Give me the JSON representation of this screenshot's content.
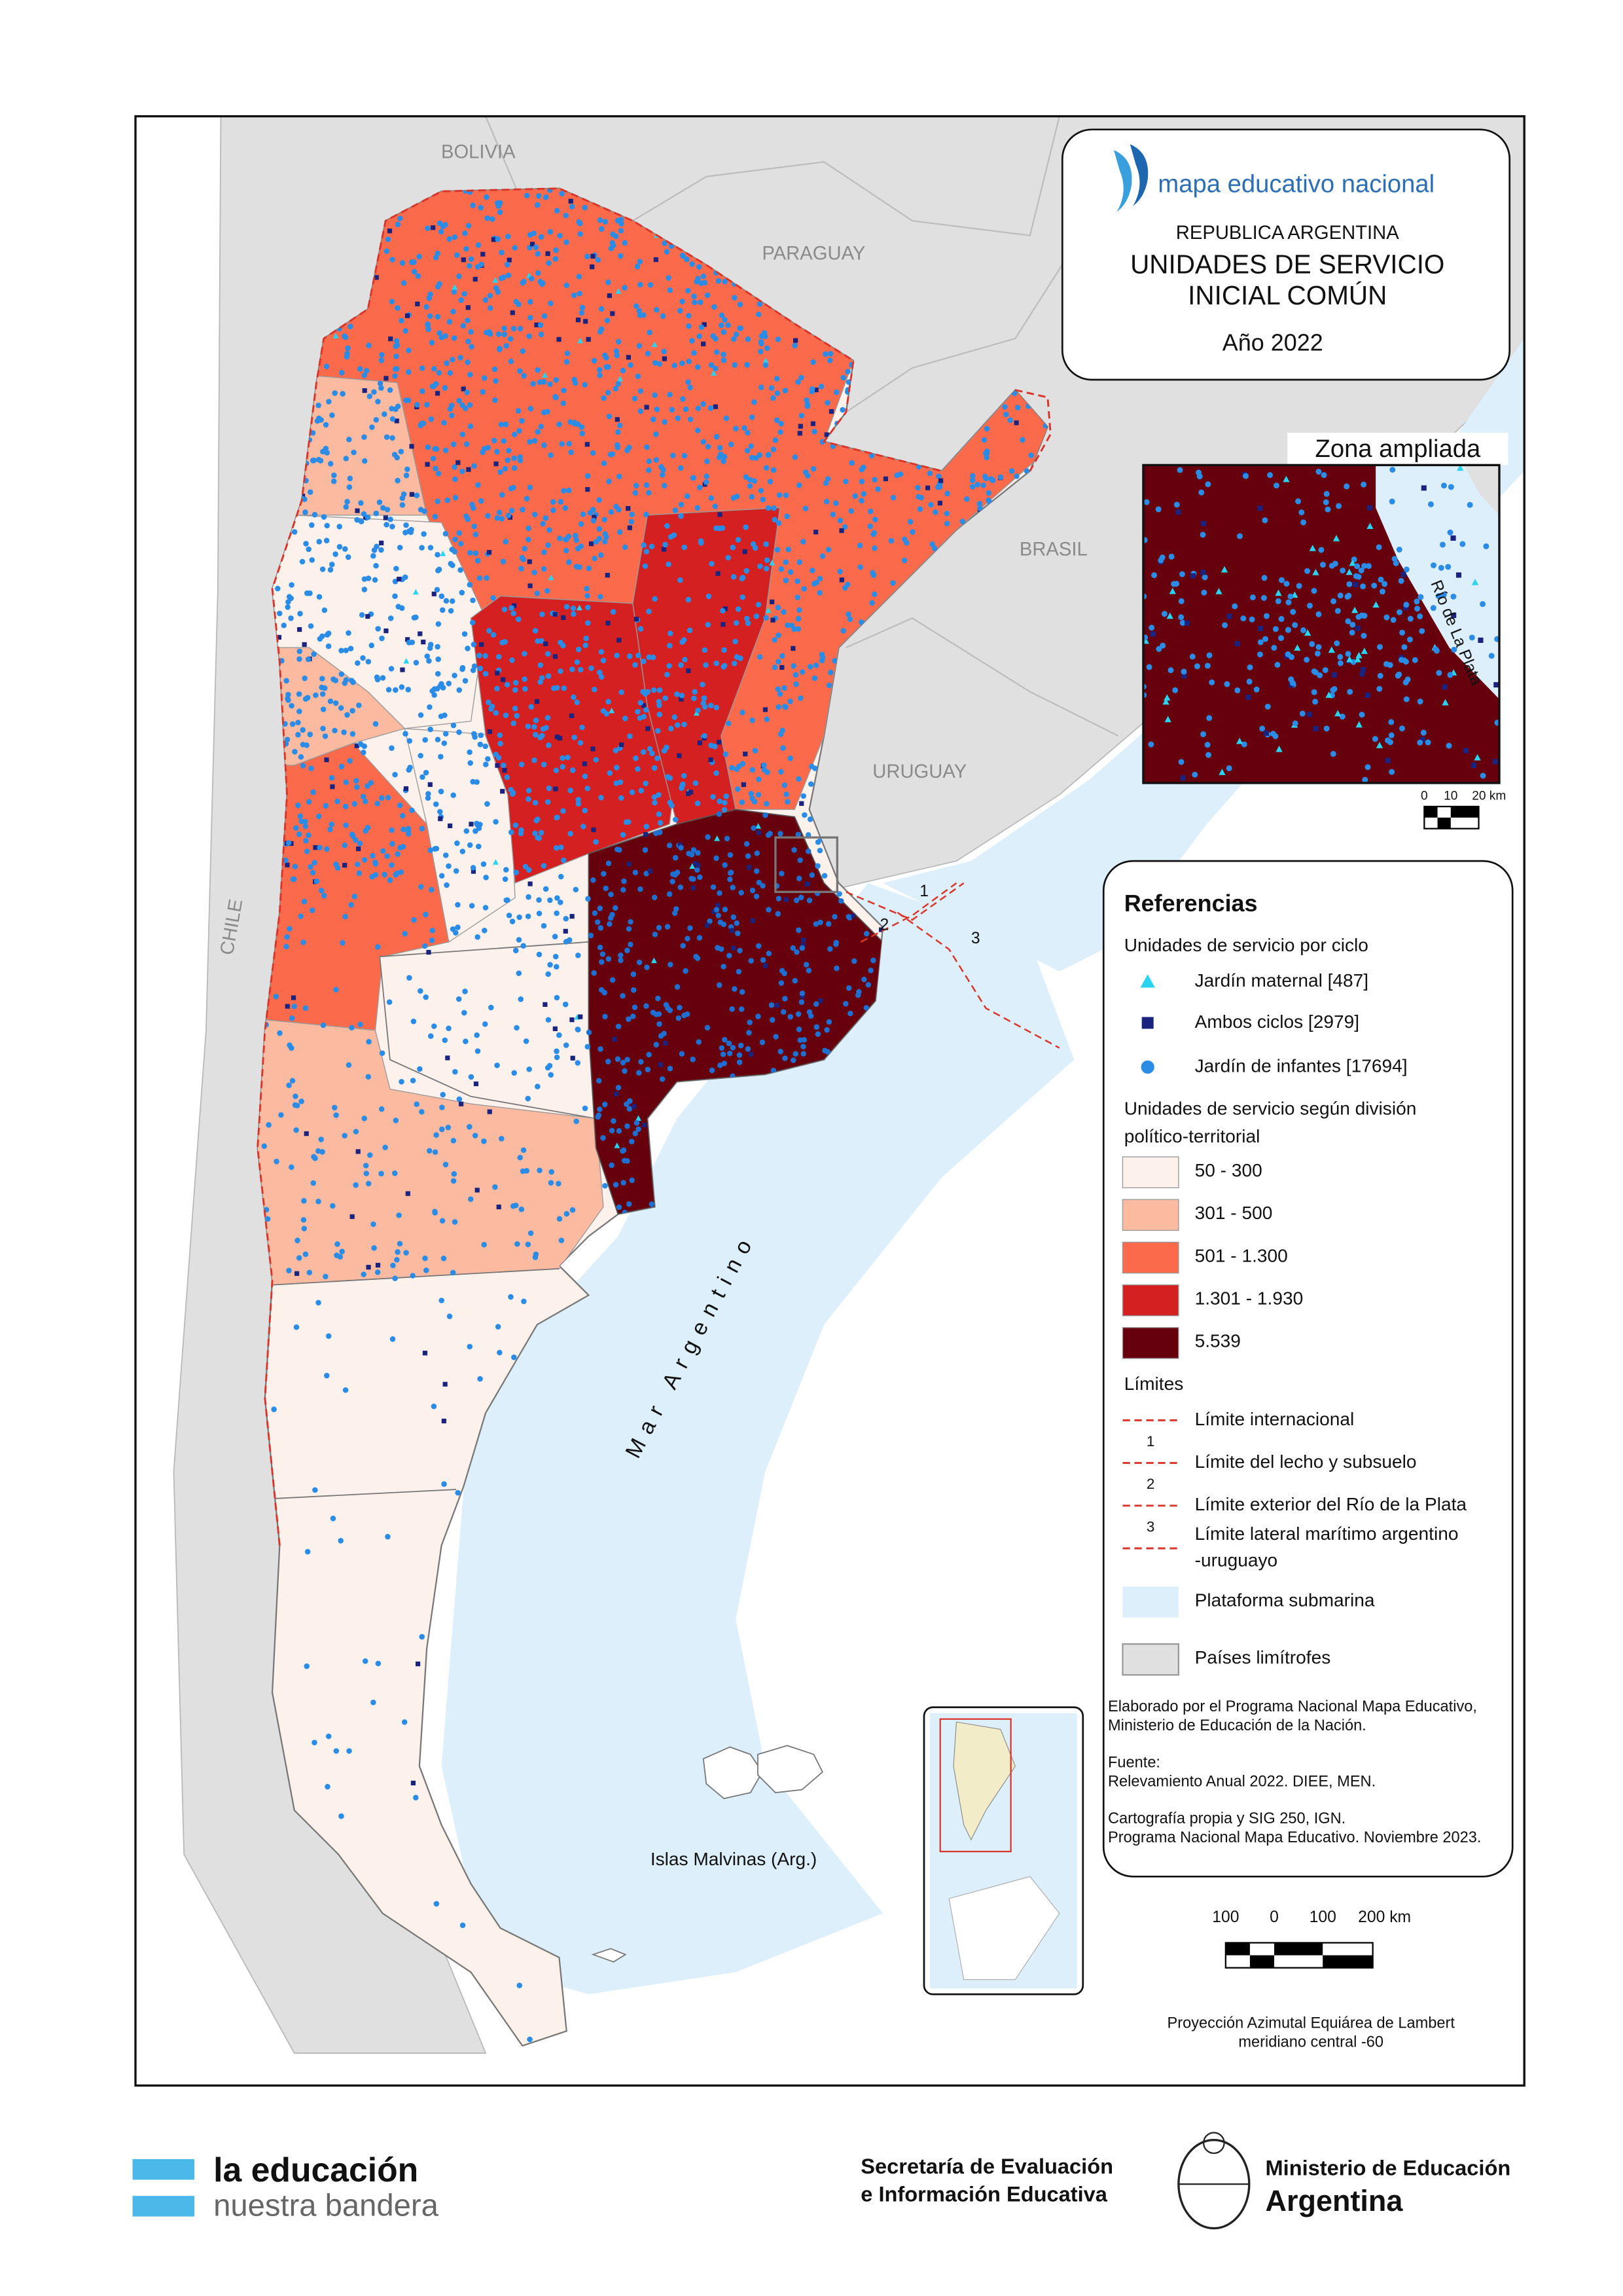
{
  "countries": [
    "BOLIVIA",
    "PARAGUAY",
    "BRASIL",
    "URUGUAY",
    "CHILE"
  ],
  "title_box": {
    "logo": "mapa educativo nacional",
    "country": "REPUBLICA  ARGENTINA",
    "title_lines": [
      "UNIDADES DE SERVICIO",
      "INICIAL COMÚN"
    ],
    "year": "Año 2022"
  },
  "zoom": {
    "title": "Zona ampliada",
    "label": "Río de La Plata",
    "scale": [
      "0",
      "10",
      "20 km"
    ]
  },
  "map_labels": {
    "limits": [
      "1",
      "2",
      "3"
    ],
    "sea": "Mar Argentino",
    "islands": "Islas Malvinas (Arg.)"
  },
  "legend": {
    "title": "Referencias",
    "cycle_title": "Unidades de servicio por ciclo",
    "cycle_items": [
      "Jardín maternal [487]",
      "Ambos ciclos [2979]",
      "Jardín de infantes [17694]"
    ],
    "class_title": [
      "Unidades de servicio según división",
      "político-territorial"
    ],
    "classes": [
      "50 - 300",
      "301 - 500",
      "501 - 1.300",
      "1.301 - 1.930",
      "5.539"
    ],
    "limits_title": "Límites",
    "limits": [
      {
        "lines": [
          "Límite internacional"
        ]
      },
      {
        "number": "1",
        "lines": [
          "Límite del lecho y subsuelo"
        ]
      },
      {
        "number": "2",
        "lines": [
          "Límite exterior del Río de la Plata"
        ]
      },
      {
        "number": "3",
        "lines": [
          "Límite lateral marítimo argentino",
          "-uruguayo"
        ]
      }
    ],
    "other": [
      "Plataforma submarina",
      "Países limítrofes"
    ]
  },
  "credits": [
    "Elaborado por el Programa Nacional Mapa Educativo,",
    "Ministerio de Educación de la Nación.",
    "Fuente:",
    "Relevamiento Anual 2022.  DIEE, MEN.",
    "Cartografía propia y SIG 250, IGN.",
    "Programa Nacional Mapa Educativo. Noviembre 2023."
  ],
  "scale": [
    "100",
    "0",
    "100",
    "200 km"
  ],
  "projection": [
    "Proyección Azimutal Equiárea de Lambert",
    "meridiano central -60"
  ],
  "footer": {
    "brand": [
      "la educación",
      "nuestra bandera"
    ],
    "secretaria": [
      "Secretaría de Evaluación",
      "e Información Educativa"
    ],
    "ministerio": [
      "Ministerio de Educación",
      "Argentina"
    ]
  }
}
